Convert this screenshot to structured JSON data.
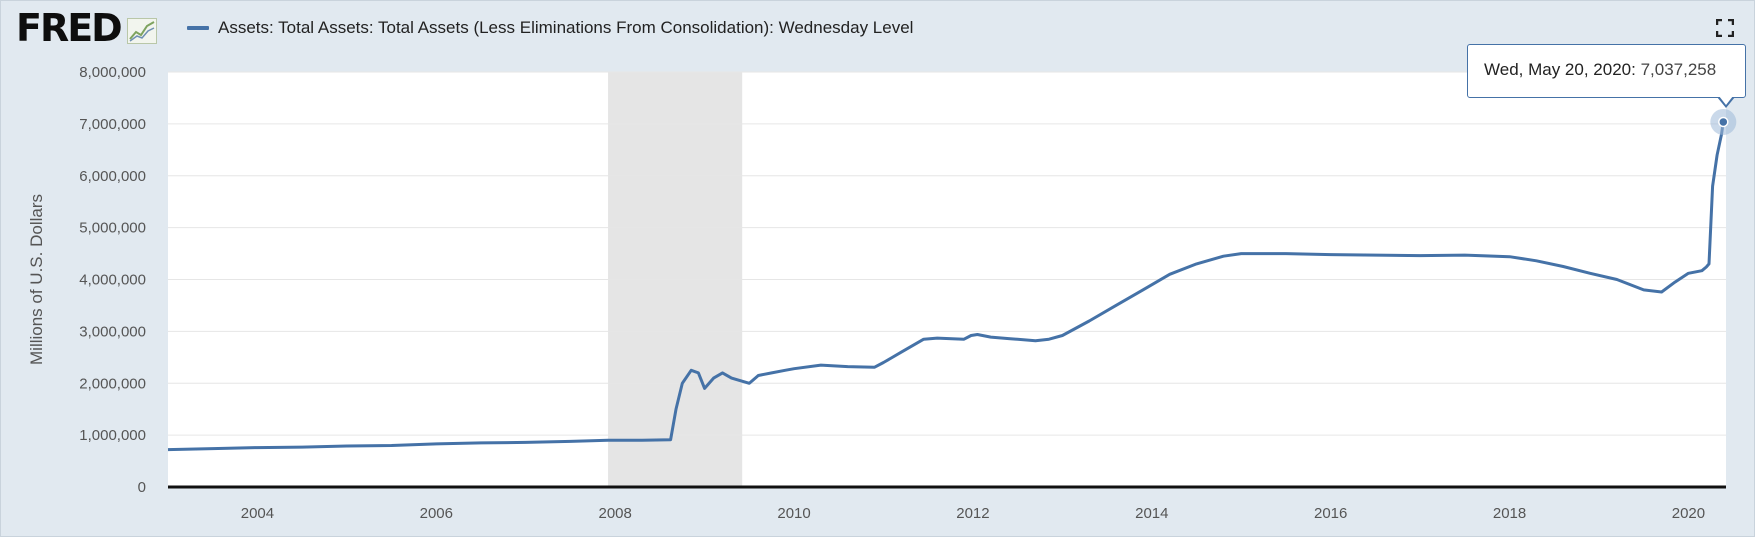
{
  "logo": {
    "text": "FRED"
  },
  "legend": {
    "label": "Assets: Total Assets: Total Assets (Less Eliminations From Consolidation): Wednesday Level"
  },
  "tooltip": {
    "date": "Wed, May 20, 2020:",
    "value": "7,037,258"
  },
  "colors": {
    "series": "#4572a7",
    "background": "#e1e9f0",
    "plot": "#ffffff",
    "recession": "#e5e5e5",
    "grid": "#e6e6e6"
  },
  "icons": {
    "logo_mark": "chart-line-icon",
    "fullscreen": "fullscreen-icon"
  },
  "chart_data": {
    "type": "line",
    "ylabel": "Millions of U.S. Dollars",
    "ylim": [
      0,
      8000000
    ],
    "xlim": [
      2003.0,
      2020.42
    ],
    "y_ticks": [
      0,
      1000000,
      2000000,
      3000000,
      4000000,
      5000000,
      6000000,
      7000000,
      8000000
    ],
    "y_tick_labels": [
      "0",
      "1,000,000",
      "2,000,000",
      "3,000,000",
      "4,000,000",
      "5,000,000",
      "6,000,000",
      "7,000,000",
      "8,000,000"
    ],
    "x_ticks": [
      2004,
      2006,
      2008,
      2010,
      2012,
      2014,
      2016,
      2018,
      2020
    ],
    "x_tick_labels": [
      "2004",
      "2006",
      "2008",
      "2010",
      "2012",
      "2014",
      "2016",
      "2018",
      "2020"
    ],
    "recession": [
      2007.92,
      2009.42
    ],
    "grid": true,
    "series": [
      {
        "name": "Assets: Total Assets: Total Assets (Less Eliminations From Consolidation): Wednesday Level",
        "x": [
          2003.0,
          2003.5,
          2004.0,
          2004.5,
          2005.0,
          2005.5,
          2006.0,
          2006.5,
          2007.0,
          2007.5,
          2007.92,
          2008.3,
          2008.62,
          2008.68,
          2008.75,
          2008.85,
          2008.93,
          2009.0,
          2009.1,
          2009.2,
          2009.3,
          2009.4,
          2009.5,
          2009.6,
          2009.75,
          2009.9,
          2010.0,
          2010.3,
          2010.6,
          2010.9,
          2011.0,
          2011.2,
          2011.45,
          2011.6,
          2011.9,
          2011.98,
          2012.05,
          2012.2,
          2012.4,
          2012.7,
          2012.85,
          2013.0,
          2013.3,
          2013.6,
          2013.9,
          2014.2,
          2014.5,
          2014.8,
          2015.0,
          2015.5,
          2016.0,
          2016.5,
          2017.0,
          2017.5,
          2018.0,
          2018.3,
          2018.6,
          2018.9,
          2019.2,
          2019.5,
          2019.7,
          2019.85,
          2020.0,
          2020.15,
          2020.2,
          2020.23,
          2020.27,
          2020.32,
          2020.37,
          2020.39
        ],
        "values": [
          720000,
          740000,
          760000,
          770000,
          790000,
          800000,
          830000,
          850000,
          860000,
          880000,
          900000,
          900000,
          910000,
          1500000,
          2000000,
          2250000,
          2200000,
          1900000,
          2100000,
          2200000,
          2100000,
          2050000,
          2000000,
          2150000,
          2200000,
          2250000,
          2280000,
          2350000,
          2320000,
          2310000,
          2400000,
          2600000,
          2850000,
          2870000,
          2850000,
          2920000,
          2940000,
          2890000,
          2860000,
          2820000,
          2850000,
          2920000,
          3200000,
          3500000,
          3800000,
          4100000,
          4300000,
          4450000,
          4500000,
          4500000,
          4480000,
          4470000,
          4460000,
          4470000,
          4440000,
          4360000,
          4250000,
          4120000,
          4000000,
          3800000,
          3760000,
          3950000,
          4120000,
          4170000,
          4240000,
          4300000,
          5800000,
          6400000,
          6800000,
          7037258
        ]
      }
    ]
  }
}
